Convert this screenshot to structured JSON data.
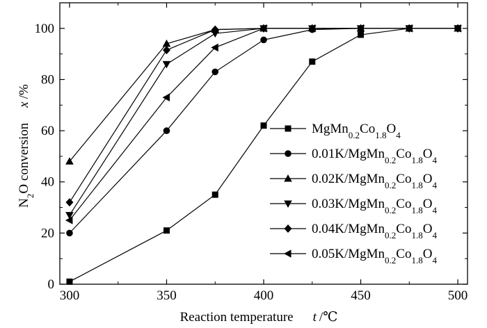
{
  "chart_data": {
    "type": "line",
    "xlabel": {
      "text": "Reaction temperature",
      "var": "t",
      "unit": "/℃"
    },
    "ylabel": {
      "pre": "N",
      "sub": "2",
      "post": "O conversion",
      "var": "x",
      "unit": "/%"
    },
    "xlim": [
      295,
      505
    ],
    "ylim": [
      0,
      110
    ],
    "xticks": [
      300,
      350,
      400,
      450,
      500
    ],
    "yticks": [
      0,
      20,
      40,
      60,
      80,
      100
    ],
    "grid": false,
    "legend_position": "center-right",
    "series": [
      {
        "name": "MgMn0.2Co1.8O4",
        "label_parts": [
          [
            "MgMn",
            ""
          ],
          [
            "0.2",
            "sub"
          ],
          [
            "Co",
            ""
          ],
          [
            "1.8",
            "sub"
          ],
          [
            "O",
            ""
          ],
          [
            "4",
            "sub"
          ]
        ],
        "marker": "square",
        "x": [
          300,
          350,
          375,
          400,
          425,
          450,
          475,
          500
        ],
        "y": [
          1,
          21,
          35,
          62,
          87,
          97.5,
          100,
          100
        ]
      },
      {
        "name": "0.01K/MgMn0.2Co1.8O4",
        "label_parts": [
          [
            "0.01K/MgMn",
            ""
          ],
          [
            "0.2",
            "sub"
          ],
          [
            "Co",
            ""
          ],
          [
            "1.8",
            "sub"
          ],
          [
            "O",
            ""
          ],
          [
            "4",
            "sub"
          ]
        ],
        "marker": "circle",
        "x": [
          300,
          350,
          375,
          400,
          425,
          450,
          475,
          500
        ],
        "y": [
          20,
          60,
          83,
          95.5,
          99.5,
          100,
          100,
          100
        ]
      },
      {
        "name": "0.02K/MgMn0.2Co1.8O4",
        "label_parts": [
          [
            "0.02K/MgMn",
            ""
          ],
          [
            "0.2",
            "sub"
          ],
          [
            "Co",
            ""
          ],
          [
            "1.8",
            "sub"
          ],
          [
            "O",
            ""
          ],
          [
            "4",
            "sub"
          ]
        ],
        "marker": "triangle-up",
        "x": [
          300,
          350,
          375,
          400,
          425,
          450,
          475,
          500
        ],
        "y": [
          48,
          94,
          99.5,
          100,
          100,
          100,
          100,
          100
        ]
      },
      {
        "name": "0.03K/MgMn0.2Co1.8O4",
        "label_parts": [
          [
            "0.03K/MgMn",
            ""
          ],
          [
            "0.2",
            "sub"
          ],
          [
            "Co",
            ""
          ],
          [
            "1.8",
            "sub"
          ],
          [
            "O",
            ""
          ],
          [
            "4",
            "sub"
          ]
        ],
        "marker": "triangle-down",
        "x": [
          300,
          350,
          375,
          400,
          425,
          450,
          475,
          500
        ],
        "y": [
          27,
          86,
          98,
          100,
          100,
          100,
          100,
          100
        ]
      },
      {
        "name": "0.04K/MgMn0.2Co1.8O4",
        "label_parts": [
          [
            "0.04K/MgMn",
            ""
          ],
          [
            "0.2",
            "sub"
          ],
          [
            "Co",
            ""
          ],
          [
            "1.8",
            "sub"
          ],
          [
            "O",
            ""
          ],
          [
            "4",
            "sub"
          ]
        ],
        "marker": "diamond",
        "x": [
          300,
          350,
          375,
          400,
          425,
          450,
          475,
          500
        ],
        "y": [
          32,
          91.5,
          99.5,
          100,
          100,
          100,
          100,
          100
        ]
      },
      {
        "name": "0.05K/MgMn0.2Co1.8O4",
        "label_parts": [
          [
            "0.05K/MgMn",
            ""
          ],
          [
            "0.2",
            "sub"
          ],
          [
            "Co",
            ""
          ],
          [
            "1.8",
            "sub"
          ],
          [
            "O",
            ""
          ],
          [
            "4",
            "sub"
          ]
        ],
        "marker": "triangle-left",
        "x": [
          300,
          350,
          375,
          400,
          425,
          450,
          475,
          500
        ],
        "y": [
          25,
          73,
          92.5,
          100,
          100,
          100,
          100,
          100
        ]
      }
    ]
  }
}
